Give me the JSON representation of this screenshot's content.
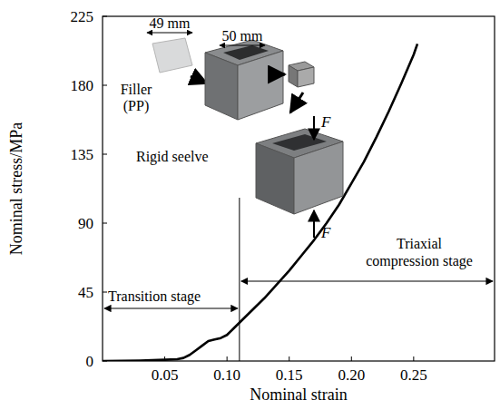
{
  "chart_data": {
    "type": "line",
    "x_label": "Nominal strain",
    "y_label": "Nominal stress/MPa",
    "x": [
      0,
      0.03,
      0.05,
      0.06,
      0.065,
      0.07,
      0.075,
      0.08,
      0.085,
      0.09,
      0.095,
      0.1,
      0.105,
      0.11,
      0.12,
      0.13,
      0.14,
      0.15,
      0.16,
      0.17,
      0.18,
      0.19,
      0.2,
      0.21,
      0.22,
      0.23,
      0.24,
      0.25,
      0.253
    ],
    "values": [
      0,
      0.3,
      0.8,
      1.2,
      2,
      4,
      7,
      10,
      13,
      14,
      15,
      17,
      21,
      25,
      33,
      41,
      50,
      59,
      69,
      79,
      90,
      102,
      116,
      130,
      146,
      163,
      181,
      200,
      207
    ],
    "color": "#000000",
    "xlim": [
      0,
      0.315
    ],
    "ylim": [
      0,
      225
    ],
    "xticks": [
      0.05,
      {
        "value": 0.1,
        "label": "0.10"
      },
      0.15,
      {
        "value": 0.2,
        "label": "0.20"
      },
      0.25
    ],
    "yticks": [
      0,
      45,
      90,
      135,
      180,
      225
    ],
    "stage_boundary": 0.11,
    "annotations": {
      "transition": "Transition stage",
      "triaxial": "Triaxial compression stage"
    },
    "inset": {
      "filler_width": "49 mm",
      "filler": "Filler (PP)",
      "sleeve_width": "50 mm",
      "sleeve": "Rigid seelve",
      "force_top": "F",
      "force_bottom": "F"
    }
  }
}
